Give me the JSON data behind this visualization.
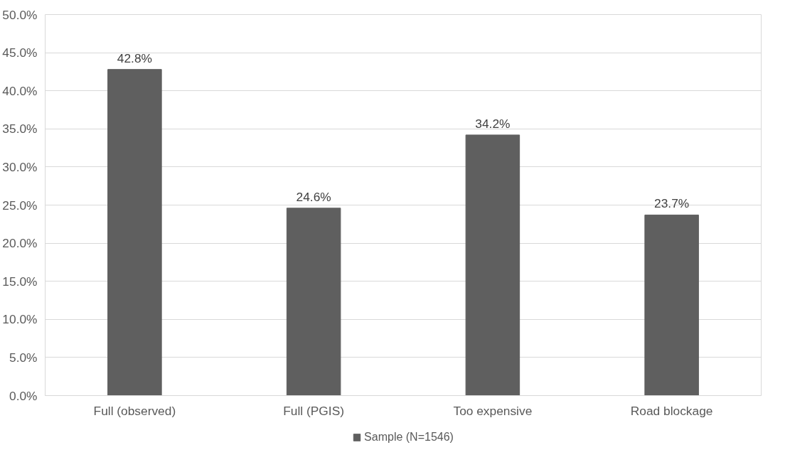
{
  "chart_data": {
    "type": "bar",
    "categories": [
      "Full (observed)",
      "Full (PGIS)",
      "Too expensive",
      "Road blockage"
    ],
    "series": [
      {
        "name": "Sample (N=1546)",
        "color": "#5f5f5f",
        "values": [
          42.8,
          24.6,
          34.2,
          23.7
        ],
        "value_labels": [
          "42.8%",
          "24.6%",
          "34.2%",
          "23.7%"
        ]
      }
    ],
    "ylim": [
      0,
      50
    ],
    "yticks": [
      {
        "value": 0,
        "label": "0.0%"
      },
      {
        "value": 5,
        "label": "5.0%"
      },
      {
        "value": 10,
        "label": "10.0%"
      },
      {
        "value": 15,
        "label": "15.0%"
      },
      {
        "value": 20,
        "label": "20.0%"
      },
      {
        "value": 25,
        "label": "25.0%"
      },
      {
        "value": 30,
        "label": "30.0%"
      },
      {
        "value": 35,
        "label": "35.0%"
      },
      {
        "value": 40,
        "label": "40.0%"
      },
      {
        "value": 45,
        "label": "45.0%"
      },
      {
        "value": 50,
        "label": "50.0%"
      }
    ],
    "grid": "y",
    "legend": "bottom"
  }
}
